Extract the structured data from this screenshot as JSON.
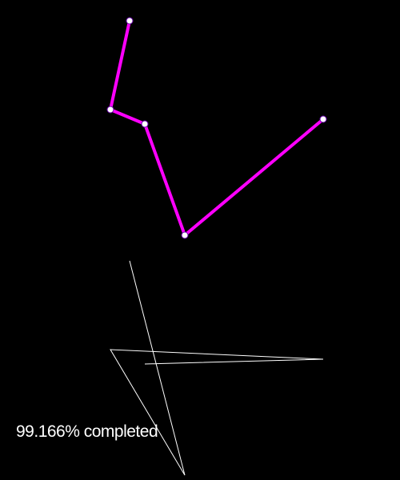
{
  "status": {
    "progress_percent": 99.166,
    "text": "99.166% completed"
  },
  "colors": {
    "background": "#000000",
    "polyline": "#ff00ff",
    "vertex_fill": "#ffffff",
    "vertex_stroke": "#6600aa",
    "thin_lines": "#ffffff",
    "status_text": "#ffffff"
  }
}
